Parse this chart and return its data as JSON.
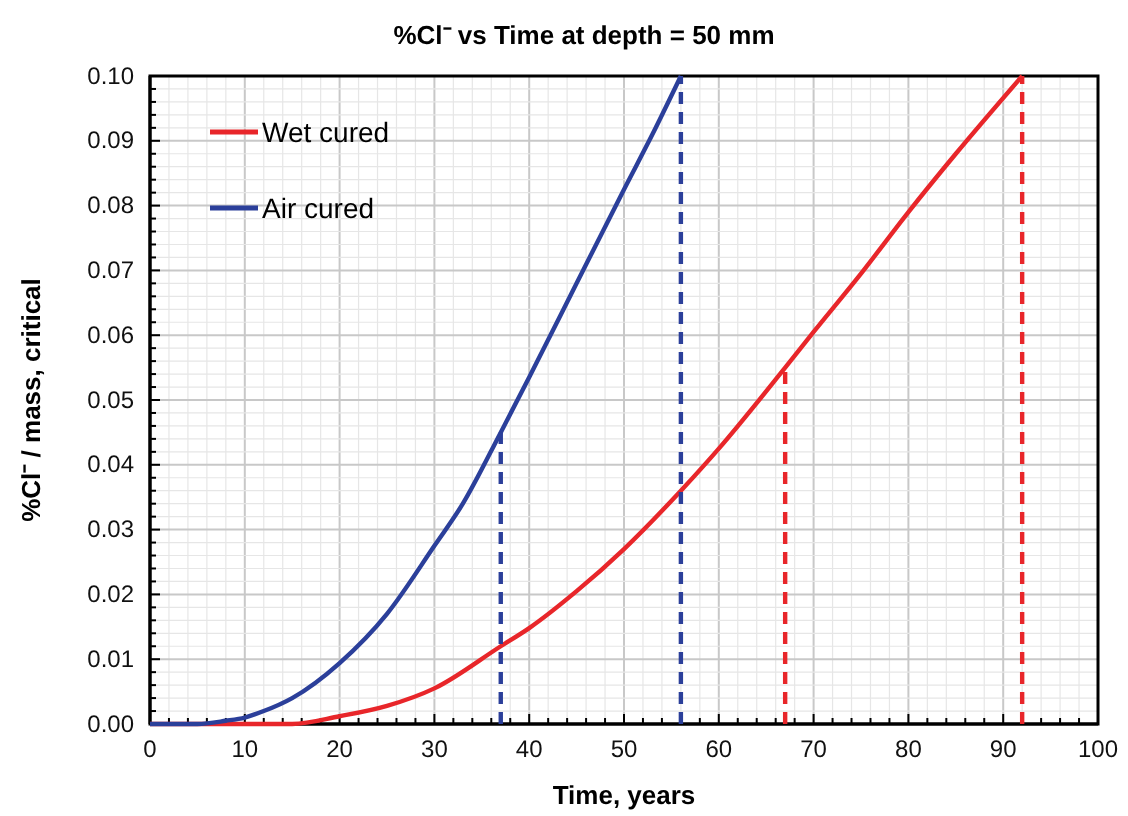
{
  "chart_data": {
    "type": "line",
    "title": "%Cl⁻ vs Time at depth = 50 mm",
    "xlabel": "Time, years",
    "ylabel": "%Cl⁻ / mass, critical",
    "series": [
      {
        "name": "Wet cured",
        "color": "#e8262a",
        "x": [
          0,
          10,
          15,
          20,
          25,
          30,
          37,
          40,
          45,
          50,
          56,
          60,
          67,
          70,
          75,
          80,
          85,
          92
        ],
        "values": [
          0,
          0,
          0,
          0.0012,
          0.0028,
          0.0055,
          0.012,
          0.0148,
          0.0205,
          0.027,
          0.036,
          0.0425,
          0.055,
          0.0605,
          0.0695,
          0.079,
          0.088,
          0.1
        ]
      },
      {
        "name": "Air cured",
        "color": "#2b3f9a",
        "x": [
          0,
          5,
          8,
          10,
          12,
          15,
          20,
          25,
          30,
          33,
          37,
          40,
          45,
          50,
          53,
          56
        ],
        "values": [
          0,
          0,
          0.0005,
          0.001,
          0.002,
          0.004,
          0.0094,
          0.017,
          0.0275,
          0.034,
          0.045,
          0.0535,
          0.068,
          0.0825,
          0.091,
          0.1
        ]
      },
      {
        "type": "line",
        "color": "#2b3f9a",
        "line_style": "dashed",
        "x": [
          37,
          37
        ],
        "values": [
          0,
          0.045
        ]
      },
      {
        "type": "line",
        "color": "#2b3f9a",
        "line_style": "dashed",
        "x": [
          56,
          56
        ],
        "values": [
          0,
          0.1
        ]
      },
      {
        "type": "line",
        "color": "#e8262a",
        "line_style": "dashed",
        "x": [
          67,
          67
        ],
        "values": [
          0,
          0.055
        ]
      },
      {
        "type": "line",
        "color": "#e8262a",
        "line_style": "dashed",
        "x": [
          92,
          92
        ],
        "values": [
          0,
          0.1
        ]
      }
    ],
    "xlim": [
      0,
      100
    ],
    "xticks": [
      0,
      10,
      20,
      30,
      40,
      50,
      60,
      70,
      80,
      90,
      100
    ],
    "ylim": [
      0,
      0.1
    ],
    "yticks": [
      {
        "value": 0,
        "label": "0.00"
      },
      {
        "value": 0.01,
        "label": "0.01"
      },
      {
        "value": 0.02,
        "label": "0.02"
      },
      {
        "value": 0.03,
        "label": "0.03"
      },
      {
        "value": 0.04,
        "label": "0.04"
      },
      {
        "value": 0.05,
        "label": "0.05"
      },
      {
        "value": 0.06,
        "label": "0.06"
      },
      {
        "value": 0.07,
        "label": "0.07"
      },
      {
        "value": 0.08,
        "label": "0.08"
      },
      {
        "value": 0.09,
        "label": "0.09"
      },
      {
        "value": 0.1,
        "label": "0.10"
      }
    ],
    "grid": true,
    "legend": "top left",
    "line_style": "solid",
    "marker": "none"
  }
}
